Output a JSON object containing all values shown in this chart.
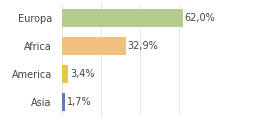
{
  "categories": [
    "Europa",
    "Africa",
    "America",
    "Asia"
  ],
  "values": [
    62.0,
    32.9,
    3.4,
    1.7
  ],
  "labels": [
    "62,0%",
    "32,9%",
    "3,4%",
    "1,7%"
  ],
  "bar_colors": [
    "#b5cc8e",
    "#f0c080",
    "#e8c840",
    "#6878b8"
  ],
  "background_color": "#ffffff",
  "xlim": [
    0,
    80
  ],
  "label_fontsize": 7,
  "category_fontsize": 7,
  "grid_color": "#dddddd",
  "grid_x": [
    0,
    20,
    40,
    60,
    80
  ]
}
